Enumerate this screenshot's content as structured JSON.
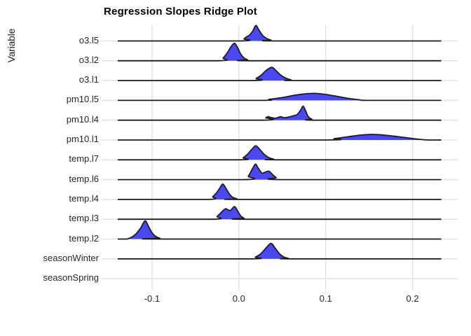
{
  "chart": {
    "title": "Regression Slopes Ridge Plot",
    "y_axis_title": "Variable"
  },
  "chart_data": {
    "type": "ridgeline",
    "title": "Regression Slopes Ridge Plot",
    "xlabel": "",
    "ylabel": "Variable",
    "x_tick_labels": [
      "-0.1",
      "0.0",
      "0.1",
      "0.2"
    ],
    "x_tick_values": [
      -0.1,
      0.0,
      0.1,
      0.2
    ],
    "xlim": [
      -0.158,
      0.252
    ],
    "baseline_span": [
      -0.1395,
      0.2331
    ],
    "grid": true,
    "legend": "none",
    "colors": {
      "fill": "#4A48EE",
      "stroke": "#1c1c1c",
      "grid": "#e3e3e3",
      "text": "#262626"
    },
    "series": [
      {
        "label": "o3.l5",
        "points": [
          [
            0.001,
            0
          ],
          [
            0.006,
            3
          ],
          [
            0.009,
            6
          ],
          [
            0.012,
            8
          ],
          [
            0.016,
            14
          ],
          [
            0.0195,
            22
          ],
          [
            0.0225,
            17
          ],
          [
            0.025,
            12
          ],
          [
            0.028,
            7
          ],
          [
            0.032,
            3.5
          ],
          [
            0.037,
            1.2
          ],
          [
            0.043,
            0
          ]
        ]
      },
      {
        "label": "o3.l2",
        "points": [
          [
            -0.0235,
            0
          ],
          [
            -0.018,
            4
          ],
          [
            -0.013,
            12
          ],
          [
            -0.009,
            20
          ],
          [
            -0.005,
            25
          ],
          [
            -0.0015,
            19
          ],
          [
            0.002,
            10
          ],
          [
            0.006,
            4
          ],
          [
            0.01,
            1.5
          ],
          [
            0.016,
            0
          ]
        ]
      },
      {
        "label": "o3.l1",
        "points": [
          [
            0.014,
            0
          ],
          [
            0.02,
            3
          ],
          [
            0.026,
            8
          ],
          [
            0.032,
            15
          ],
          [
            0.038,
            19
          ],
          [
            0.043,
            14
          ],
          [
            0.048,
            8
          ],
          [
            0.054,
            3.5
          ],
          [
            0.06,
            1
          ],
          [
            0.067,
            0
          ]
        ]
      },
      {
        "label": "pm10.l5",
        "points": [
          [
            0.022,
            0
          ],
          [
            0.035,
            1.5
          ],
          [
            0.05,
            4
          ],
          [
            0.065,
            7.5
          ],
          [
            0.078,
            9.5
          ],
          [
            0.088,
            10
          ],
          [
            0.1,
            8.5
          ],
          [
            0.112,
            6
          ],
          [
            0.125,
            3
          ],
          [
            0.138,
            1
          ],
          [
            0.15,
            0
          ]
        ]
      },
      {
        "label": "pm10.l4",
        "points": [
          [
            0.026,
            0
          ],
          [
            0.031,
            3.5
          ],
          [
            0.034,
            5
          ],
          [
            0.038,
            3.5
          ],
          [
            0.043,
            3
          ],
          [
            0.048,
            5
          ],
          [
            0.052,
            3.5
          ],
          [
            0.057,
            4.5
          ],
          [
            0.062,
            6
          ],
          [
            0.067,
            8
          ],
          [
            0.071,
            14
          ],
          [
            0.074,
            20
          ],
          [
            0.077,
            13
          ],
          [
            0.08,
            5
          ],
          [
            0.084,
            1.5
          ],
          [
            0.089,
            0
          ]
        ]
      },
      {
        "label": "pm10.l1",
        "points": [
          [
            0.096,
            0
          ],
          [
            0.11,
            2
          ],
          [
            0.125,
            4.5
          ],
          [
            0.14,
            7
          ],
          [
            0.152,
            8
          ],
          [
            0.163,
            7.5
          ],
          [
            0.175,
            6
          ],
          [
            0.188,
            4
          ],
          [
            0.198,
            2.5
          ],
          [
            0.208,
            1
          ],
          [
            0.218,
            0
          ]
        ]
      },
      {
        "label": "temp.l7",
        "points": [
          [
            -0.001,
            0
          ],
          [
            0.005,
            3
          ],
          [
            0.01,
            8
          ],
          [
            0.015,
            15
          ],
          [
            0.0195,
            20
          ],
          [
            0.024,
            15
          ],
          [
            0.029,
            8
          ],
          [
            0.034,
            3.5
          ],
          [
            0.04,
            1
          ],
          [
            0.046,
            0
          ]
        ]
      },
      {
        "label": "temp.l6",
        "points": [
          [
            0.006,
            0
          ],
          [
            0.011,
            5
          ],
          [
            0.015,
            14
          ],
          [
            0.019,
            22
          ],
          [
            0.022,
            17
          ],
          [
            0.0265,
            9.5
          ],
          [
            0.03,
            10.5
          ],
          [
            0.0345,
            12
          ],
          [
            0.039,
            7
          ],
          [
            0.043,
            3
          ],
          [
            0.049,
            0
          ]
        ]
      },
      {
        "label": "temp.l4",
        "points": [
          [
            -0.036,
            0
          ],
          [
            -0.03,
            4
          ],
          [
            -0.026,
            9
          ],
          [
            -0.022,
            16
          ],
          [
            -0.0185,
            22
          ],
          [
            -0.015,
            16
          ],
          [
            -0.011,
            8
          ],
          [
            -0.007,
            3
          ],
          [
            -0.002,
            0.8
          ],
          [
            0.002,
            0
          ]
        ]
      },
      {
        "label": "temp.l3",
        "points": [
          [
            -0.03,
            0
          ],
          [
            -0.025,
            4
          ],
          [
            -0.02,
            10
          ],
          [
            -0.0153,
            15
          ],
          [
            -0.01,
            12.5
          ],
          [
            -0.005,
            18
          ],
          [
            -0.001,
            11
          ],
          [
            0.002,
            5
          ],
          [
            0.006,
            1.5
          ],
          [
            0.01,
            0
          ]
        ]
      },
      {
        "label": "temp.l2",
        "points": [
          [
            -0.129,
            0
          ],
          [
            -0.123,
            3
          ],
          [
            -0.118,
            8
          ],
          [
            -0.113,
            16
          ],
          [
            -0.108,
            26
          ],
          [
            -0.104,
            18
          ],
          [
            -0.1,
            9
          ],
          [
            -0.096,
            4
          ],
          [
            -0.091,
            1.2
          ],
          [
            -0.086,
            0
          ]
        ]
      },
      {
        "label": "seasonWinter",
        "points": [
          [
            0.013,
            0
          ],
          [
            0.019,
            2.5
          ],
          [
            0.025,
            7
          ],
          [
            0.031,
            15
          ],
          [
            0.037,
            22
          ],
          [
            0.042,
            15
          ],
          [
            0.047,
            7
          ],
          [
            0.052,
            2.5
          ],
          [
            0.057,
            0.8
          ],
          [
            0.062,
            0
          ]
        ]
      },
      {
        "label": "seasonSpring",
        "points": []
      }
    ]
  }
}
